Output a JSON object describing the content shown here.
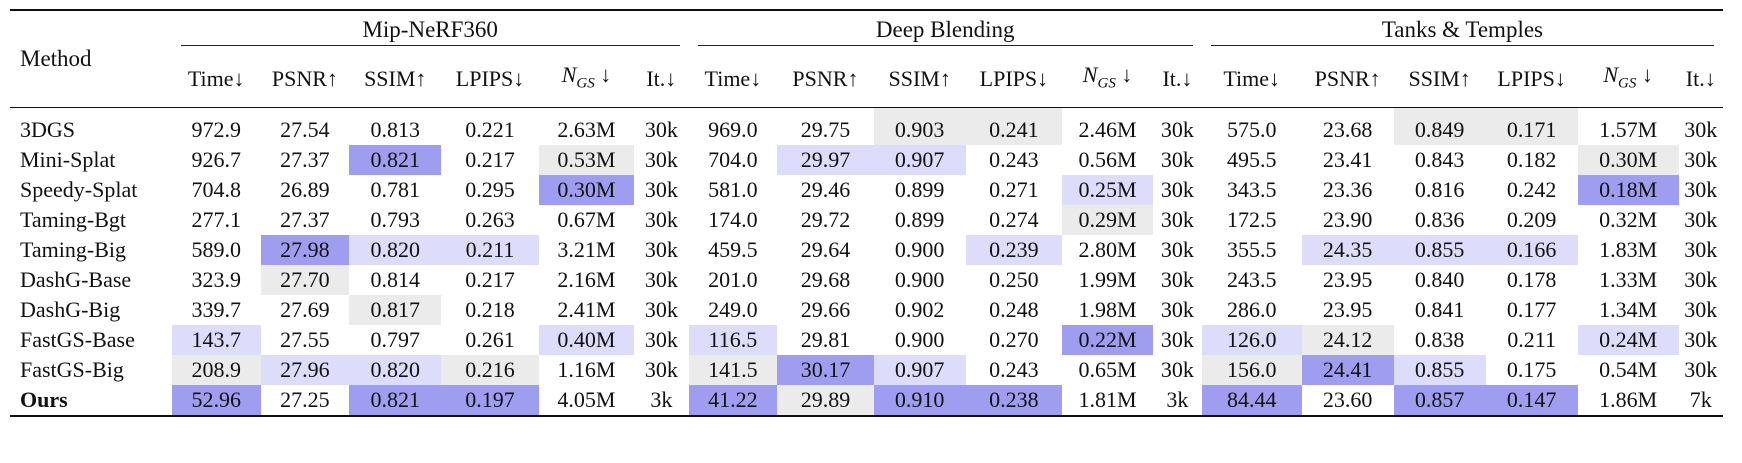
{
  "header": {
    "method_label": "Method",
    "groups": [
      "Mip-NeRF360",
      "Deep Blending",
      "Tanks & Temples"
    ],
    "metrics": [
      "Time↓",
      "PSNR↑",
      "SSIM↑",
      "LPIPS↓",
      "N_GS ↓",
      "It.↓"
    ]
  },
  "highlight_colors": {
    "best": "#9f9df0",
    "second": "#dddcfb",
    "third": "#ebebeb"
  },
  "rows": [
    {
      "method": "3DGS",
      "bold": false,
      "values": [
        [
          "972.9",
          "27.54",
          "0.813",
          "0.221",
          "2.63M",
          "30k"
        ],
        [
          "969.0",
          "29.75",
          "0.903",
          "0.241",
          "2.46M",
          "30k"
        ],
        [
          "575.0",
          "23.68",
          "0.849",
          "0.171",
          "1.57M",
          "30k"
        ]
      ],
      "hl": [
        [
          0,
          0,
          0,
          0,
          0,
          0
        ],
        [
          0,
          0,
          3,
          3,
          0,
          0
        ],
        [
          0,
          0,
          3,
          3,
          0,
          0
        ]
      ]
    },
    {
      "method": "Mini-Splat",
      "bold": false,
      "values": [
        [
          "926.7",
          "27.37",
          "0.821",
          "0.217",
          "0.53M",
          "30k"
        ],
        [
          "704.0",
          "29.97",
          "0.907",
          "0.243",
          "0.56M",
          "30k"
        ],
        [
          "495.5",
          "23.41",
          "0.843",
          "0.182",
          "0.30M",
          "30k"
        ]
      ],
      "hl": [
        [
          0,
          0,
          1,
          0,
          3,
          0
        ],
        [
          0,
          2,
          2,
          0,
          0,
          0
        ],
        [
          0,
          0,
          0,
          0,
          3,
          0
        ]
      ]
    },
    {
      "method": "Speedy-Splat",
      "bold": false,
      "values": [
        [
          "704.8",
          "26.89",
          "0.781",
          "0.295",
          "0.30M",
          "30k"
        ],
        [
          "581.0",
          "29.46",
          "0.899",
          "0.271",
          "0.25M",
          "30k"
        ],
        [
          "343.5",
          "23.36",
          "0.816",
          "0.242",
          "0.18M",
          "30k"
        ]
      ],
      "hl": [
        [
          0,
          0,
          0,
          0,
          1,
          0
        ],
        [
          0,
          0,
          0,
          0,
          2,
          0
        ],
        [
          0,
          0,
          0,
          0,
          1,
          0
        ]
      ]
    },
    {
      "method": "Taming-Bgt",
      "bold": false,
      "values": [
        [
          "277.1",
          "27.37",
          "0.793",
          "0.263",
          "0.67M",
          "30k"
        ],
        [
          "174.0",
          "29.72",
          "0.899",
          "0.274",
          "0.29M",
          "30k"
        ],
        [
          "172.5",
          "23.90",
          "0.836",
          "0.209",
          "0.32M",
          "30k"
        ]
      ],
      "hl": [
        [
          0,
          0,
          0,
          0,
          0,
          0
        ],
        [
          0,
          0,
          0,
          0,
          3,
          0
        ],
        [
          0,
          0,
          0,
          0,
          0,
          0
        ]
      ]
    },
    {
      "method": "Taming-Big",
      "bold": false,
      "values": [
        [
          "589.0",
          "27.98",
          "0.820",
          "0.211",
          "3.21M",
          "30k"
        ],
        [
          "459.5",
          "29.64",
          "0.900",
          "0.239",
          "2.80M",
          "30k"
        ],
        [
          "355.5",
          "24.35",
          "0.855",
          "0.166",
          "1.83M",
          "30k"
        ]
      ],
      "hl": [
        [
          0,
          1,
          2,
          2,
          0,
          0
        ],
        [
          0,
          0,
          0,
          2,
          0,
          0
        ],
        [
          0,
          2,
          2,
          2,
          0,
          0
        ]
      ]
    },
    {
      "method": "DashG-Base",
      "bold": false,
      "values": [
        [
          "323.9",
          "27.70",
          "0.814",
          "0.217",
          "2.16M",
          "30k"
        ],
        [
          "201.0",
          "29.68",
          "0.900",
          "0.250",
          "1.99M",
          "30k"
        ],
        [
          "243.5",
          "23.95",
          "0.840",
          "0.178",
          "1.33M",
          "30k"
        ]
      ],
      "hl": [
        [
          0,
          3,
          0,
          0,
          0,
          0
        ],
        [
          0,
          0,
          0,
          0,
          0,
          0
        ],
        [
          0,
          0,
          0,
          0,
          0,
          0
        ]
      ]
    },
    {
      "method": "DashG-Big",
      "bold": false,
      "values": [
        [
          "339.7",
          "27.69",
          "0.817",
          "0.218",
          "2.41M",
          "30k"
        ],
        [
          "249.0",
          "29.66",
          "0.902",
          "0.248",
          "1.98M",
          "30k"
        ],
        [
          "286.0",
          "23.95",
          "0.841",
          "0.177",
          "1.34M",
          "30k"
        ]
      ],
      "hl": [
        [
          0,
          0,
          3,
          0,
          0,
          0
        ],
        [
          0,
          0,
          0,
          0,
          0,
          0
        ],
        [
          0,
          0,
          0,
          0,
          0,
          0
        ]
      ]
    },
    {
      "method": "FastGS-Base",
      "bold": false,
      "values": [
        [
          "143.7",
          "27.55",
          "0.797",
          "0.261",
          "0.40M",
          "30k"
        ],
        [
          "116.5",
          "29.81",
          "0.900",
          "0.270",
          "0.22M",
          "30k"
        ],
        [
          "126.0",
          "24.12",
          "0.838",
          "0.211",
          "0.24M",
          "30k"
        ]
      ],
      "hl": [
        [
          2,
          0,
          0,
          0,
          2,
          0
        ],
        [
          2,
          0,
          0,
          0,
          1,
          0
        ],
        [
          2,
          3,
          0,
          0,
          2,
          0
        ]
      ]
    },
    {
      "method": "FastGS-Big",
      "bold": false,
      "values": [
        [
          "208.9",
          "27.96",
          "0.820",
          "0.216",
          "1.16M",
          "30k"
        ],
        [
          "141.5",
          "30.17",
          "0.907",
          "0.243",
          "0.65M",
          "30k"
        ],
        [
          "156.0",
          "24.41",
          "0.855",
          "0.175",
          "0.54M",
          "30k"
        ]
      ],
      "hl": [
        [
          3,
          2,
          2,
          3,
          0,
          0
        ],
        [
          3,
          1,
          2,
          0,
          0,
          0
        ],
        [
          3,
          1,
          2,
          0,
          0,
          0
        ]
      ]
    },
    {
      "method": "Ours",
      "bold": true,
      "values": [
        [
          "52.96",
          "27.25",
          "0.821",
          "0.197",
          "4.05M",
          "3k"
        ],
        [
          "41.22",
          "29.89",
          "0.910",
          "0.238",
          "1.81M",
          "3k"
        ],
        [
          "84.44",
          "23.60",
          "0.857",
          "0.147",
          "1.86M",
          "7k"
        ]
      ],
      "hl": [
        [
          1,
          0,
          1,
          1,
          0,
          0
        ],
        [
          1,
          3,
          1,
          1,
          0,
          0
        ],
        [
          1,
          0,
          1,
          1,
          0,
          0
        ]
      ]
    }
  ]
}
